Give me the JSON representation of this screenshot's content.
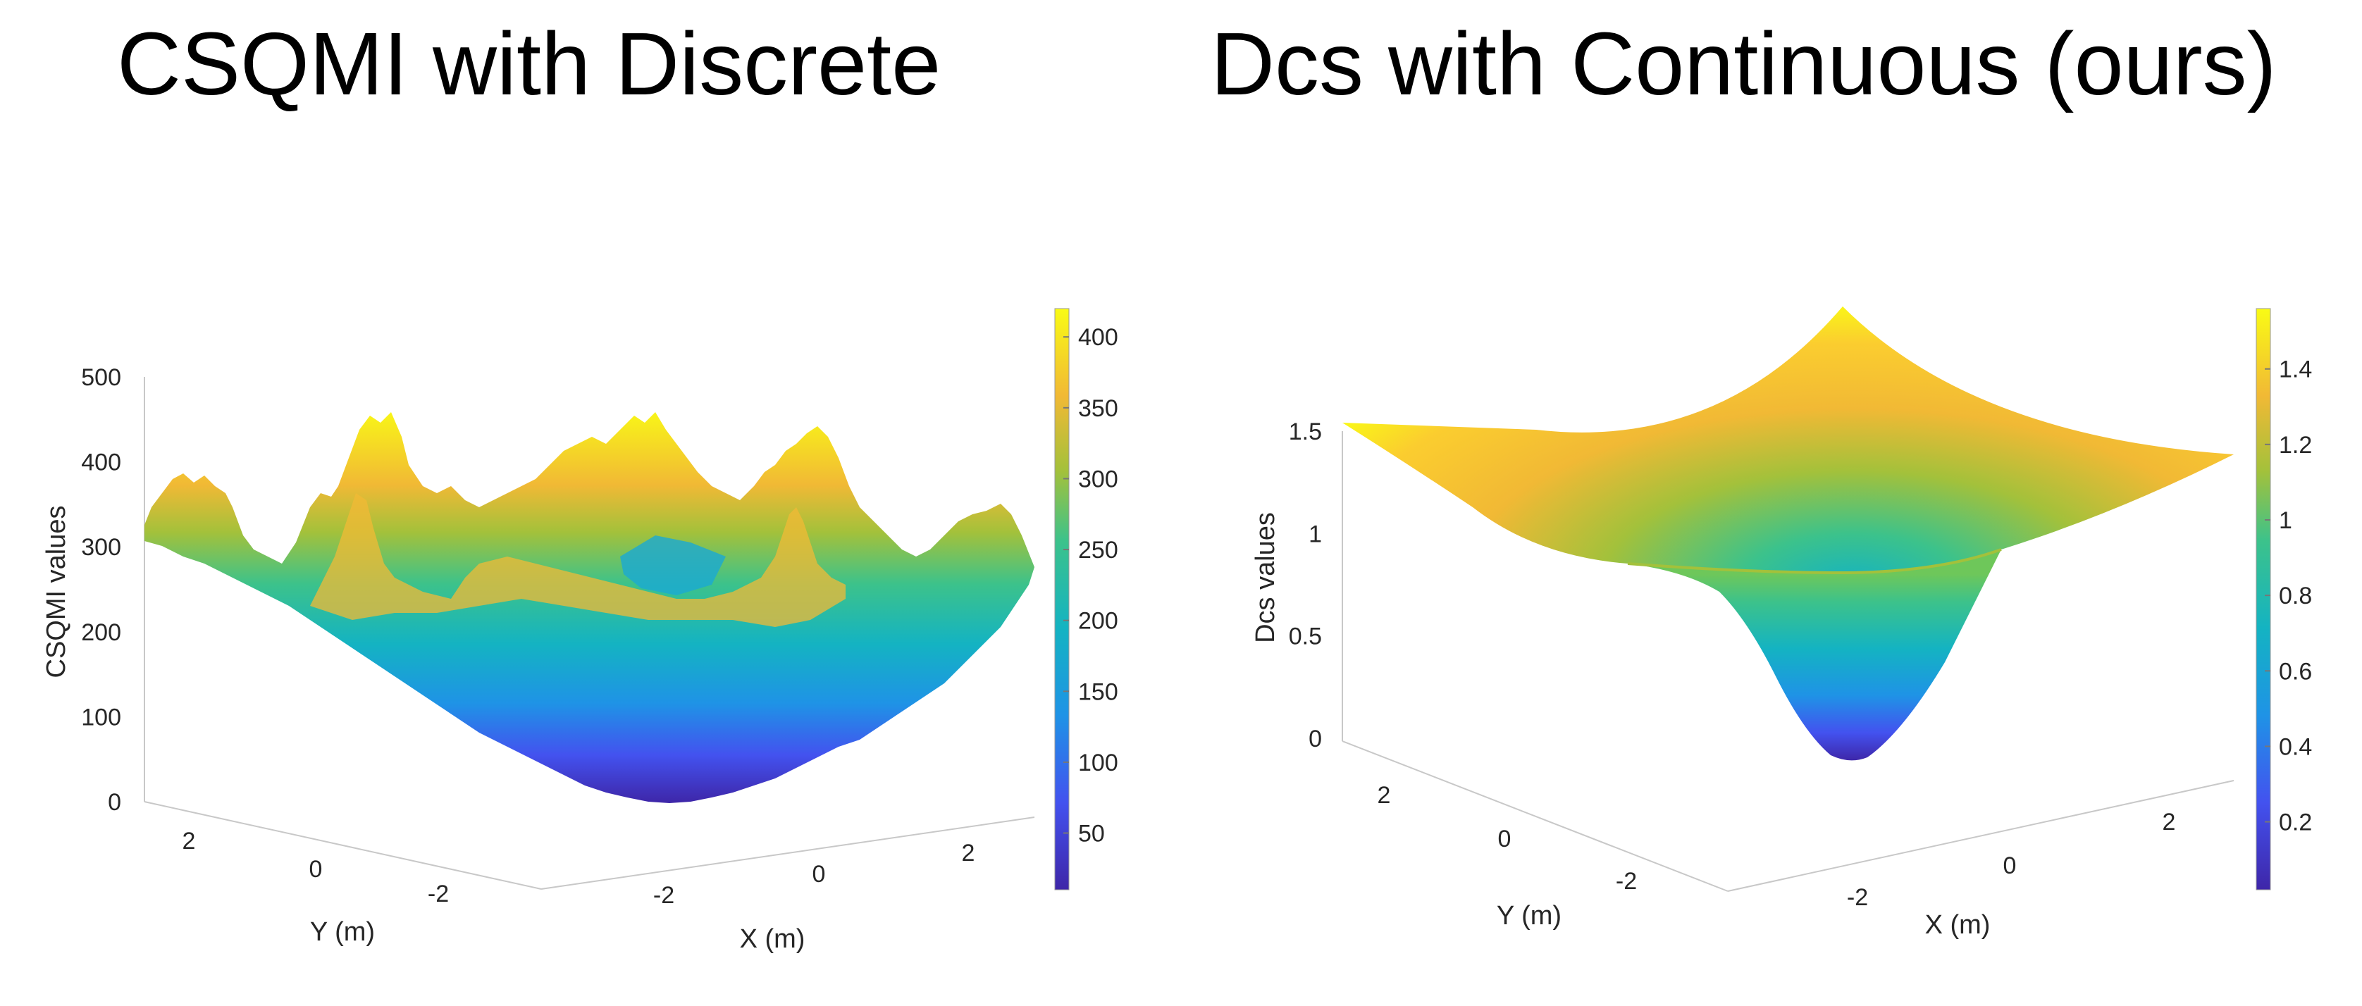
{
  "chart_data": [
    {
      "type": "surface",
      "title": "CSQMI with Discrete",
      "xlabel": "X (m)",
      "ylabel": "Y (m)",
      "zlabel": "CSQMI values",
      "x_ticks": [
        "-2",
        "0",
        "2"
      ],
      "y_ticks": [
        "2",
        "0",
        "-2"
      ],
      "z_ticks": [
        "0",
        "100",
        "200",
        "300",
        "400",
        "500"
      ],
      "zlim": [
        0,
        500
      ],
      "colorbar": {
        "range": [
          10,
          420
        ],
        "ticks": [
          "50",
          "100",
          "150",
          "200",
          "250",
          "300",
          "350",
          "400"
        ]
      },
      "colormap": "parula",
      "surface_description_values": {
        "center_min": 0,
        "back_corner_max": 360,
        "side_edges": 320,
        "front_ridge_peaks": [
          400,
          440,
          450
        ]
      },
      "grid": false
    },
    {
      "type": "surface",
      "title": "Dcs with Continuous (ours)",
      "xlabel": "X (m)",
      "ylabel": "Y (m)",
      "zlabel": "Dcs values",
      "x_ticks": [
        "-2",
        "0",
        "2"
      ],
      "y_ticks": [
        "2",
        "0",
        "-2"
      ],
      "z_ticks": [
        "0",
        "0.5",
        "1",
        "1.5"
      ],
      "zlim": [
        0,
        1.6
      ],
      "colorbar": {
        "range": [
          0.02,
          1.56
        ],
        "ticks": [
          "0.2",
          "0.4",
          "0.6",
          "0.8",
          "1",
          "1.2",
          "1.4"
        ]
      },
      "colormap": "parula",
      "surface_description_values": {
        "center_min": 0.05,
        "edge_midpoints": 0.92,
        "corner_max": 1.56
      },
      "grid": false
    }
  ]
}
